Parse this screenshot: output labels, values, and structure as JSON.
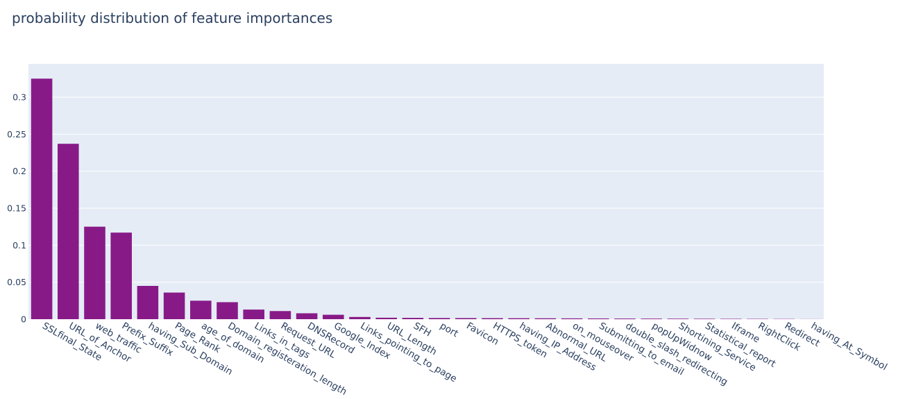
{
  "chart_data": {
    "type": "bar",
    "title": "probability distribution of feature importances",
    "xlabel": "",
    "ylabel": "",
    "ylim": [
      0,
      0.345
    ],
    "yticks": [
      {
        "value": 0,
        "label": "0"
      },
      {
        "value": 0.05,
        "label": "0.05"
      },
      {
        "value": 0.1,
        "label": "0.1"
      },
      {
        "value": 0.15,
        "label": "0.15"
      },
      {
        "value": 0.2,
        "label": "0.2"
      },
      {
        "value": 0.25,
        "label": "0.25"
      },
      {
        "value": 0.3,
        "label": "0.3"
      }
    ],
    "grid": true,
    "bar_color": "#881a88",
    "plot_bg": "#e5ecf6",
    "categories": [
      "SSLfinal_State",
      "URL_of_Anchor",
      "web_traffic",
      "Prefix_Suffix",
      "having_Sub_Domain",
      "Page_Rank",
      "age_of_domain",
      "Domain_registeration_length",
      "Links_in_tags",
      "Request_URL",
      "DNSRecord",
      "Google_Index",
      "Links_pointing_to_page",
      "URL_Length",
      "SFH",
      "port",
      "Favicon",
      "HTTPS_token",
      "having_IP_Address",
      "Abnormal_URL",
      "on_mouseover",
      "Submitting_to_email",
      "double_slash_redirecting",
      "popUpWidnow",
      "Shortining_Service",
      "Statistical_report",
      "Iframe",
      "RightClick",
      "Redirect",
      "having_At_Symbol"
    ],
    "values": [
      0.325,
      0.237,
      0.125,
      0.117,
      0.045,
      0.036,
      0.025,
      0.023,
      0.013,
      0.011,
      0.008,
      0.006,
      0.003,
      0.002,
      0.0018,
      0.0016,
      0.0015,
      0.0014,
      0.0013,
      0.0012,
      0.0011,
      0.001,
      0.0009,
      0.0008,
      0.0007,
      0.0006,
      0.0005,
      0.0004,
      0.0003,
      0.0001
    ]
  }
}
